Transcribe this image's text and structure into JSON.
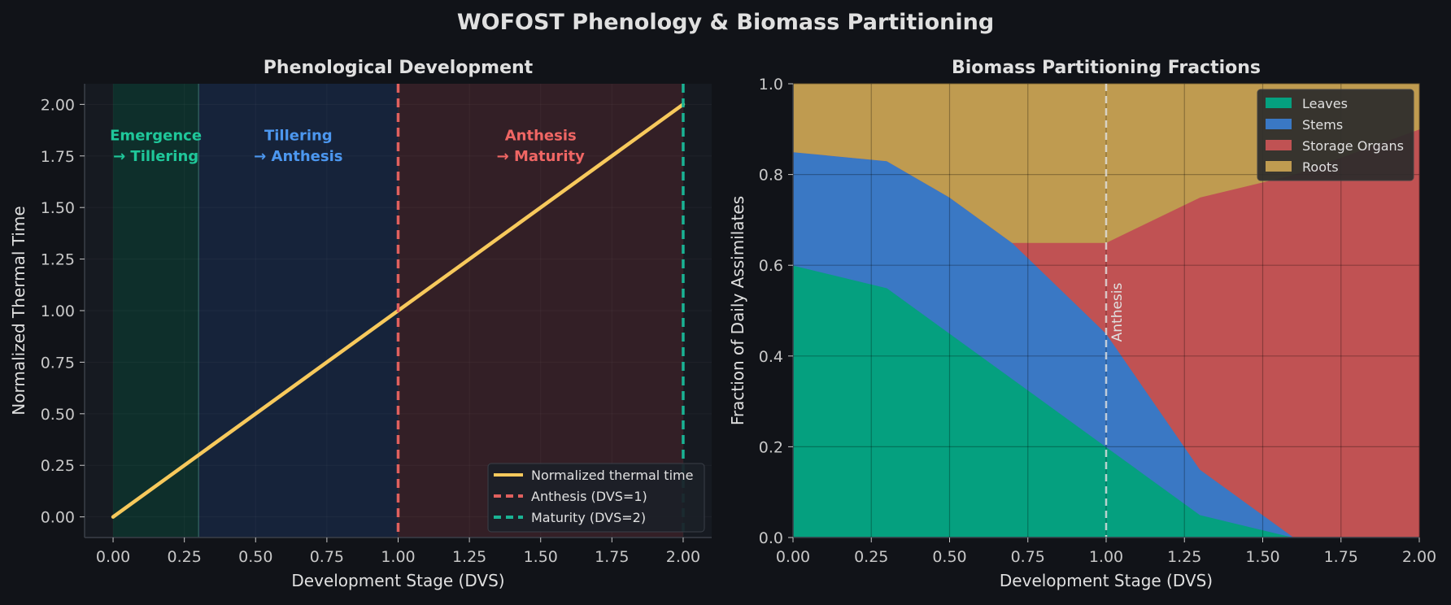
{
  "figure": {
    "title": "WOFOST Phenology & Biomass Partitioning",
    "colors": {
      "background": "#111318",
      "axes_bg": "#161a21",
      "text": "#e0e0e0",
      "tick": "#c8c8c8",
      "grid": "#2a2e36"
    }
  },
  "chart_data": [
    {
      "type": "line",
      "title": "Phenological Development",
      "xlabel": "Development Stage (DVS)",
      "ylabel": "Normalized Thermal Time",
      "xlim": [
        -0.1,
        2.1
      ],
      "ylim": [
        -0.1,
        2.1
      ],
      "xticks": [
        0.0,
        0.25,
        0.5,
        0.75,
        1.0,
        1.25,
        1.5,
        1.75,
        2.0
      ],
      "xtick_labels": [
        "0.00",
        "0.25",
        "0.50",
        "0.75",
        "1.00",
        "1.25",
        "1.50",
        "1.75",
        "2.00"
      ],
      "yticks": [
        0.0,
        0.25,
        0.5,
        0.75,
        1.0,
        1.25,
        1.5,
        1.75,
        2.0
      ],
      "ytick_labels": [
        "0.00",
        "0.25",
        "0.50",
        "0.75",
        "1.00",
        "1.25",
        "1.50",
        "1.75",
        "2.00"
      ],
      "grid": true,
      "legend_position": "lower-right",
      "regions": [
        {
          "x0": 0.0,
          "x1": 0.3,
          "label_line1": "Emergence",
          "label_line2": "→ Tillering",
          "color": "#0e2f2b",
          "text_color": "#1fc79a",
          "label_x": 0.15
        },
        {
          "x0": 0.3,
          "x1": 1.0,
          "label_line1": "Tillering",
          "label_line2": "→ Anthesis",
          "color": "#16233a",
          "text_color": "#4c97ef",
          "label_x": 0.65
        },
        {
          "x0": 1.0,
          "x1": 2.0,
          "label_line1": "Anthesis",
          "label_line2": "→ Maturity",
          "color": "#331f26",
          "text_color": "#f06664",
          "label_x": 1.5
        }
      ],
      "region_label_y": [
        1.85,
        1.76
      ],
      "series": [
        {
          "name": "Normalized thermal time",
          "x": [
            0.0,
            2.0
          ],
          "y": [
            0.0,
            2.0
          ],
          "color": "#f7c95c",
          "style": "solid"
        }
      ],
      "vlines": [
        {
          "name": "Anthesis (DVS=1)",
          "x": 1.0,
          "color": "#e0605e",
          "style": "dashed"
        },
        {
          "name": "Maturity (DVS=2)",
          "x": 2.0,
          "color": "#1ab394",
          "style": "dashed"
        }
      ]
    },
    {
      "type": "area",
      "stacked": true,
      "title": "Biomass Partitioning Fractions",
      "xlabel": "Development Stage (DVS)",
      "ylabel": "Fraction of Daily Assimilates",
      "xlim": [
        0.0,
        2.0
      ],
      "ylim": [
        0.0,
        1.0
      ],
      "xticks": [
        0.0,
        0.25,
        0.5,
        0.75,
        1.0,
        1.25,
        1.5,
        1.75,
        2.0
      ],
      "xtick_labels": [
        "0.00",
        "0.25",
        "0.50",
        "0.75",
        "1.00",
        "1.25",
        "1.50",
        "1.75",
        "2.00"
      ],
      "yticks": [
        0.0,
        0.2,
        0.4,
        0.6,
        0.8,
        1.0
      ],
      "ytick_labels": [
        "0.0",
        "0.2",
        "0.4",
        "0.6",
        "0.8",
        "1.0"
      ],
      "grid": true,
      "legend_position": "upper-right",
      "x": [
        0.0,
        0.3,
        0.5,
        0.7,
        1.0,
        1.3,
        1.6,
        2.0
      ],
      "series": [
        {
          "name": "Leaves",
          "values": [
            0.6,
            0.55,
            0.45,
            0.35,
            0.2,
            0.05,
            0.0,
            0.0
          ],
          "color": "#05a07f"
        },
        {
          "name": "Stems",
          "values": [
            0.25,
            0.28,
            0.3,
            0.3,
            0.25,
            0.1,
            0.0,
            0.0
          ],
          "color": "#3a78c4"
        },
        {
          "name": "Storage Organs",
          "values": [
            0.0,
            0.0,
            0.0,
            0.0,
            0.2,
            0.6,
            0.8,
            0.9
          ],
          "color": "#c05253"
        },
        {
          "name": "Roots",
          "values": [
            0.15,
            0.17,
            0.25,
            0.35,
            0.35,
            0.25,
            0.2,
            0.1
          ],
          "color": "#bf9b50"
        }
      ],
      "vline": {
        "x": 1.0,
        "label": "Anthesis",
        "color": "#e6e6e6",
        "style": "dashed"
      }
    }
  ]
}
